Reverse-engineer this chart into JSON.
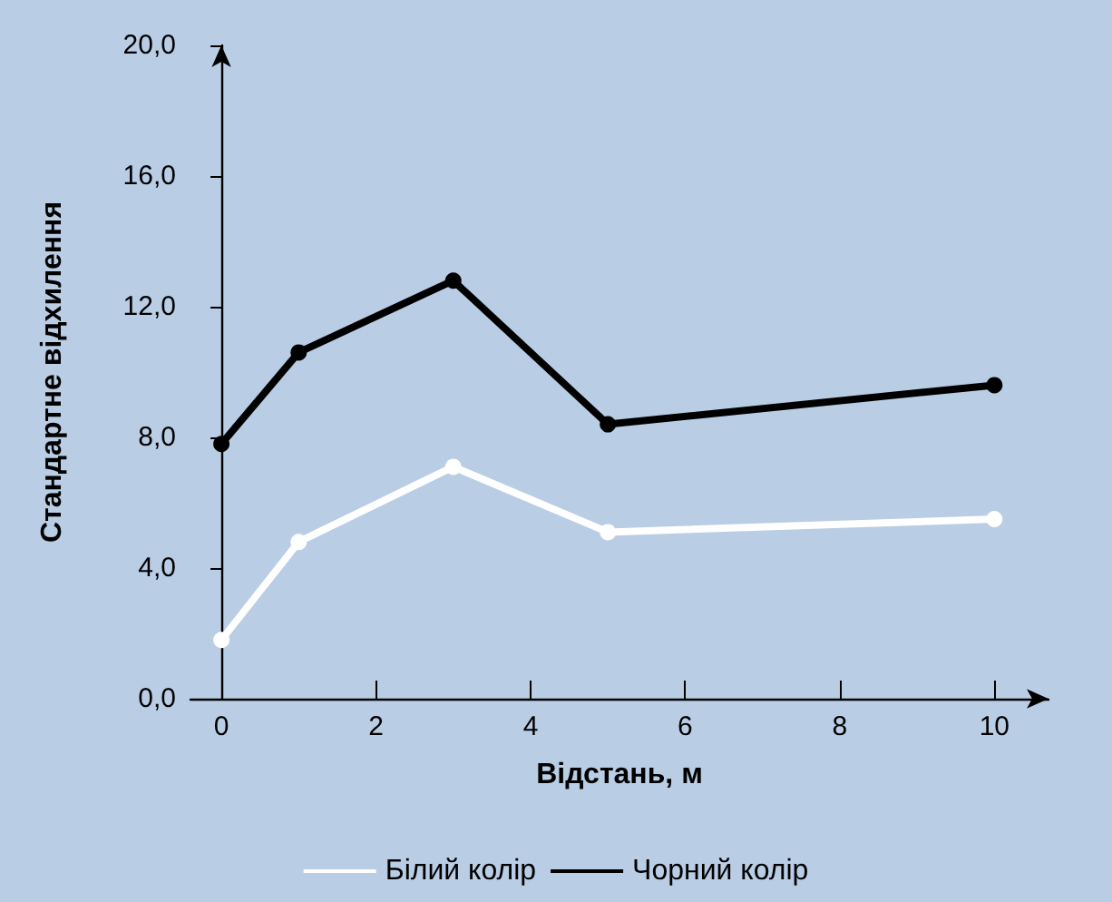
{
  "chart_data": {
    "type": "line",
    "xlabel": "Відстань, м",
    "ylabel": "Стандартне відхилення",
    "x": [
      0,
      1,
      3,
      5,
      10
    ],
    "series": [
      {
        "name": "Білий колір",
        "color": "#ffffff",
        "values": [
          1.8,
          4.8,
          7.1,
          5.1,
          5.5
        ]
      },
      {
        "name": "Чорний колір",
        "color": "#000000",
        "values": [
          7.8,
          10.6,
          12.8,
          8.4,
          9.6
        ]
      }
    ],
    "xlim": [
      -0.4,
      10.7
    ],
    "xticks": [
      0,
      2,
      4,
      6,
      8,
      10
    ],
    "ylim": [
      0,
      20
    ],
    "yticks": [
      {
        "value": 0,
        "label": "0,0"
      },
      {
        "value": 4,
        "label": "4,0"
      },
      {
        "value": 8,
        "label": "8,0"
      },
      {
        "value": 12,
        "label": "12,0"
      },
      {
        "value": 16,
        "label": "16,0"
      },
      {
        "value": 20,
        "label": "20,0"
      }
    ],
    "grid": false,
    "legend": "bottom",
    "marker": "circle",
    "line_style": "solid"
  }
}
